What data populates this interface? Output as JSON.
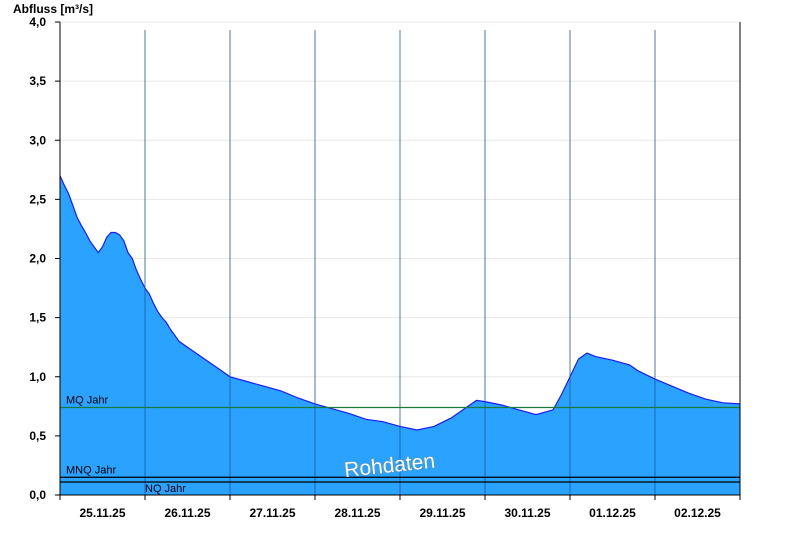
{
  "chart_data": {
    "type": "area",
    "ylabel": "Abfluss [m³/s]",
    "ylim": [
      0,
      4.0
    ],
    "yticks": [
      "0,0",
      "0,5",
      "1,0",
      "1,5",
      "2,0",
      "2,5",
      "3,0",
      "3,5",
      "4,0"
    ],
    "xticks": [
      "25.11.25",
      "26.11.25",
      "27.11.25",
      "28.11.25",
      "29.11.25",
      "30.11.25",
      "01.12.25",
      "02.12.25"
    ],
    "xlim_days": [
      0,
      8
    ],
    "grid": true,
    "watermark": "Rohdaten",
    "series": [
      {
        "points": [
          [
            0.0,
            2.7
          ],
          [
            0.05,
            2.62
          ],
          [
            0.1,
            2.55
          ],
          [
            0.15,
            2.45
          ],
          [
            0.2,
            2.35
          ],
          [
            0.25,
            2.28
          ],
          [
            0.3,
            2.22
          ],
          [
            0.35,
            2.15
          ],
          [
            0.4,
            2.1
          ],
          [
            0.45,
            2.05
          ],
          [
            0.5,
            2.1
          ],
          [
            0.55,
            2.18
          ],
          [
            0.6,
            2.22
          ],
          [
            0.65,
            2.22
          ],
          [
            0.7,
            2.2
          ],
          [
            0.75,
            2.15
          ],
          [
            0.8,
            2.05
          ],
          [
            0.85,
            2.0
          ],
          [
            0.9,
            1.9
          ],
          [
            0.95,
            1.82
          ],
          [
            1.0,
            1.75
          ],
          [
            1.05,
            1.7
          ],
          [
            1.1,
            1.62
          ],
          [
            1.15,
            1.55
          ],
          [
            1.2,
            1.5
          ],
          [
            1.25,
            1.46
          ],
          [
            1.3,
            1.4
          ],
          [
            1.35,
            1.35
          ],
          [
            1.4,
            1.3
          ],
          [
            1.5,
            1.25
          ],
          [
            1.6,
            1.2
          ],
          [
            1.7,
            1.15
          ],
          [
            1.8,
            1.1
          ],
          [
            1.9,
            1.05
          ],
          [
            2.0,
            1.0
          ],
          [
            2.2,
            0.96
          ],
          [
            2.4,
            0.92
          ],
          [
            2.6,
            0.88
          ],
          [
            2.8,
            0.82
          ],
          [
            3.0,
            0.77
          ],
          [
            3.2,
            0.73
          ],
          [
            3.4,
            0.69
          ],
          [
            3.6,
            0.64
          ],
          [
            3.8,
            0.62
          ],
          [
            4.0,
            0.58
          ],
          [
            4.2,
            0.55
          ],
          [
            4.4,
            0.58
          ],
          [
            4.6,
            0.65
          ],
          [
            4.8,
            0.75
          ],
          [
            4.9,
            0.8
          ],
          [
            5.0,
            0.79
          ],
          [
            5.2,
            0.76
          ],
          [
            5.4,
            0.72
          ],
          [
            5.6,
            0.68
          ],
          [
            5.8,
            0.72
          ],
          [
            5.9,
            0.85
          ],
          [
            6.0,
            1.0
          ],
          [
            6.1,
            1.15
          ],
          [
            6.2,
            1.2
          ],
          [
            6.3,
            1.17
          ],
          [
            6.5,
            1.14
          ],
          [
            6.7,
            1.1
          ],
          [
            6.8,
            1.05
          ],
          [
            7.0,
            0.98
          ],
          [
            7.2,
            0.92
          ],
          [
            7.4,
            0.86
          ],
          [
            7.6,
            0.81
          ],
          [
            7.8,
            0.78
          ],
          [
            8.0,
            0.77
          ]
        ],
        "color": "#29a3ff",
        "line_color": "#1a1aff"
      }
    ],
    "reference_lines": [
      {
        "label": "MQ Jahr",
        "value": 0.74,
        "color": "#1a7a3a"
      },
      {
        "label": "MNQ Jahr",
        "value": 0.15,
        "color": "#000000"
      },
      {
        "label": "NQ Jahr",
        "value": 0.11,
        "color": "#000000"
      }
    ]
  }
}
